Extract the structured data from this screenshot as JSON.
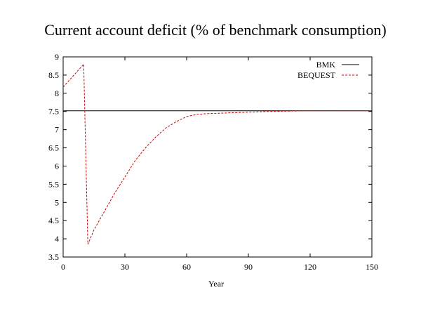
{
  "chart_data": {
    "type": "line",
    "title": "Current account deficit (% of benchmark consumption)",
    "xlabel": "Year",
    "ylabel": "",
    "xlim": [
      0,
      150
    ],
    "ylim": [
      3.5,
      9
    ],
    "xticks": [
      0,
      30,
      60,
      90,
      120,
      150
    ],
    "yticks": [
      3.5,
      4,
      4.5,
      5,
      5.5,
      6,
      6.5,
      7,
      7.5,
      8,
      8.5,
      9
    ],
    "ytick_labels": [
      "3.5",
      "4",
      "4.5",
      "5",
      "5.5",
      "6",
      "6.5",
      "7",
      "7.5",
      "8",
      "8.5",
      "9"
    ],
    "grid": false,
    "legend": "top-right",
    "series": [
      {
        "name": "BMK",
        "color": "#000000",
        "dash": "solid",
        "x": [
          0,
          150
        ],
        "y": [
          7.52,
          7.52
        ]
      },
      {
        "name": "BEQUEST",
        "color": "#cc0000",
        "dash": "dashed",
        "x": [
          0,
          10,
          12,
          15,
          20,
          25,
          30,
          35,
          40,
          45,
          50,
          55,
          60,
          65,
          70,
          80,
          90,
          100,
          120,
          150
        ],
        "y": [
          8.17,
          8.8,
          3.85,
          4.25,
          4.75,
          5.25,
          5.7,
          6.15,
          6.5,
          6.8,
          7.05,
          7.22,
          7.36,
          7.42,
          7.44,
          7.46,
          7.48,
          7.5,
          7.52,
          7.52
        ]
      }
    ]
  }
}
